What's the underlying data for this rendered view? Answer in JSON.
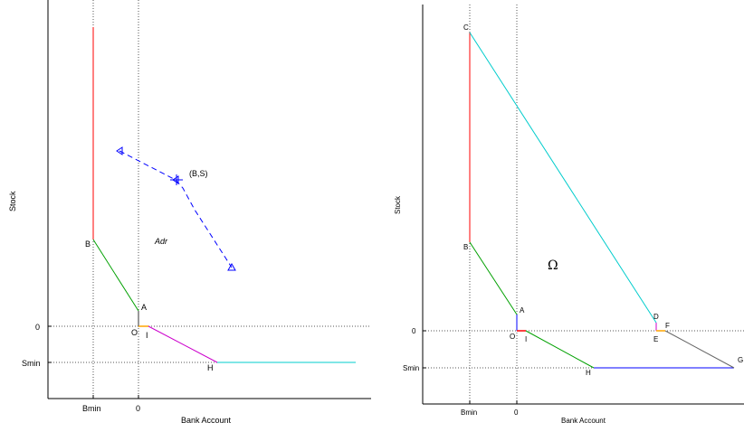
{
  "left": {
    "xlabel": "Bank Account",
    "ylabel": "Stock",
    "xticks": [
      "Bmin",
      "0"
    ],
    "yticks": [
      "0",
      "Smin"
    ],
    "points": {
      "B": "B",
      "A": "A",
      "O": "O",
      "I": "I",
      "H": "H"
    },
    "region": "Adr",
    "trajectory_label": "(B,S)",
    "colors": {
      "red": "#ff0000",
      "green": "#00a000",
      "orange": "#ffa500",
      "magenta": "#cc00cc",
      "cyan": "#00cccc",
      "blue": "#0000ff",
      "dotted": "#555555"
    }
  },
  "right": {
    "xlabel": "Bank Account",
    "ylabel": "Stock",
    "xticks": [
      "Bmin",
      "0"
    ],
    "yticks": [
      "0",
      "Smin"
    ],
    "points": {
      "C": "C",
      "B": "B",
      "A": "A",
      "O": "O",
      "I": "I",
      "H": "H",
      "D": "D",
      "E": "E",
      "F": "F",
      "G": "G"
    },
    "region": "Ω",
    "colors": {
      "red": "#ff0000",
      "green": "#00a000",
      "cyan": "#00cccc",
      "blue": "#0000ff",
      "gray": "#666666",
      "orange": "#ffa500",
      "magenta": "#cc00cc"
    }
  }
}
